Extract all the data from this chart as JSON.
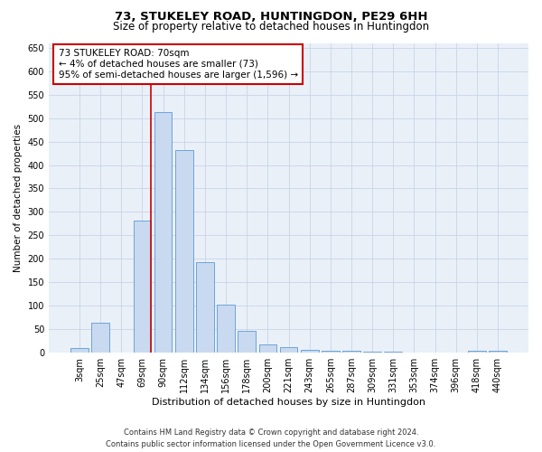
{
  "title": "73, STUKELEY ROAD, HUNTINGDON, PE29 6HH",
  "subtitle": "Size of property relative to detached houses in Huntingdon",
  "xlabel": "Distribution of detached houses by size in Huntingdon",
  "ylabel": "Number of detached properties",
  "categories": [
    "3sqm",
    "25sqm",
    "47sqm",
    "69sqm",
    "90sqm",
    "112sqm",
    "134sqm",
    "156sqm",
    "178sqm",
    "200sqm",
    "221sqm",
    "243sqm",
    "265sqm",
    "287sqm",
    "309sqm",
    "331sqm",
    "353sqm",
    "374sqm",
    "396sqm",
    "418sqm",
    "440sqm"
  ],
  "values": [
    10,
    63,
    0,
    282,
    512,
    432,
    193,
    102,
    46,
    17,
    11,
    7,
    5,
    4,
    3,
    3,
    0,
    0,
    0,
    5,
    5
  ],
  "bar_color": "#c9d9f0",
  "bar_edge_color": "#5b9bd5",
  "marker_label": "73 STUKELEY ROAD: 70sqm\n← 4% of detached houses are smaller (73)\n95% of semi-detached houses are larger (1,596) →",
  "annotation_box_color": "#ffffff",
  "annotation_box_edge": "#cc0000",
  "vline_color": "#cc0000",
  "ylim": [
    0,
    660
  ],
  "yticks": [
    0,
    50,
    100,
    150,
    200,
    250,
    300,
    350,
    400,
    450,
    500,
    550,
    600,
    650
  ],
  "grid_color": "#c8d4e8",
  "background_color": "#eaf0f8",
  "footer": "Contains HM Land Registry data © Crown copyright and database right 2024.\nContains public sector information licensed under the Open Government Licence v3.0.",
  "title_fontsize": 9.5,
  "subtitle_fontsize": 8.5,
  "xlabel_fontsize": 8,
  "ylabel_fontsize": 7.5,
  "tick_fontsize": 7,
  "footer_fontsize": 6,
  "annot_fontsize": 7.5
}
